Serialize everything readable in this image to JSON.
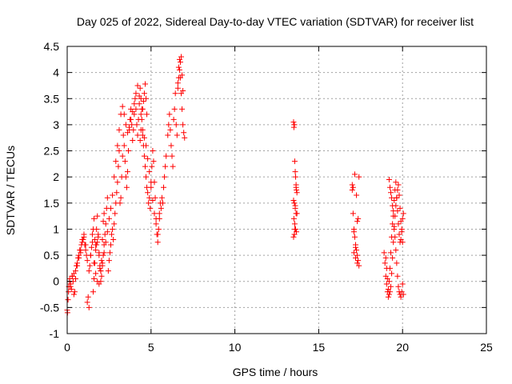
{
  "chart_data": {
    "type": "scatter",
    "title": "Day 025 of 2022, Sidereal Day-to-day VTEC variation (SDTVAR) for receiver list",
    "xlabel": "GPS time / hours",
    "ylabel": "SDTVAR / TECUs",
    "xlim": [
      0,
      25
    ],
    "ylim": [
      -1,
      4.5
    ],
    "xticks": [
      0,
      5,
      10,
      15,
      20,
      25
    ],
    "xtick_labels": [
      "0",
      "5",
      "10",
      "15",
      "20",
      "25"
    ],
    "yticks": [
      -1,
      -0.5,
      0,
      0.5,
      1,
      1.5,
      2,
      2.5,
      3,
      3.5,
      4,
      4.5
    ],
    "ytick_labels": [
      "-1",
      "-0.5",
      "0",
      "0.5",
      "1",
      "1.5",
      "2",
      "2.5",
      "3",
      "3.5",
      "4",
      "4.5"
    ],
    "grid": true,
    "legend": "none",
    "marker": "+",
    "color": "#ff0000",
    "series": [
      {
        "name": "SDTVAR",
        "x": [
          0.0,
          0.05,
          0.1,
          0.15,
          0.2,
          0.25,
          0.3,
          0.35,
          0.4,
          0.45,
          0.5,
          0.55,
          0.6,
          0.65,
          0.7,
          0.75,
          0.8,
          0.85,
          0.9,
          0.95,
          1.0,
          1.05,
          1.1,
          1.15,
          1.2,
          1.25,
          1.3,
          1.35,
          1.4,
          1.45,
          1.5,
          1.55,
          1.6,
          1.65,
          1.7,
          1.75,
          1.8,
          1.85,
          1.9,
          1.95,
          2.0,
          2.05,
          2.1,
          2.15,
          2.2,
          2.25,
          2.3,
          2.35,
          2.4,
          2.45,
          2.5,
          2.55,
          2.6,
          2.65,
          2.7,
          2.75,
          2.8,
          2.85,
          2.9,
          2.95,
          3.0,
          3.05,
          3.1,
          3.15,
          3.2,
          3.25,
          3.3,
          3.35,
          3.4,
          3.45,
          3.5,
          3.55,
          3.6,
          3.65,
          3.7,
          3.75,
          3.8,
          3.85,
          3.9,
          3.95,
          4.0,
          4.05,
          4.1,
          4.15,
          4.2,
          4.25,
          4.3,
          4.35,
          4.4,
          4.45,
          4.5,
          4.55,
          4.6,
          4.65,
          4.7,
          4.75,
          4.8,
          4.85,
          4.9,
          4.95,
          5.0,
          5.05,
          5.1,
          5.15,
          5.2,
          5.25,
          5.3,
          5.35,
          5.4,
          5.45,
          5.5,
          5.55,
          5.6,
          5.65,
          5.7,
          5.75,
          5.8,
          5.85,
          5.9,
          6.0,
          6.05,
          6.1,
          6.15,
          6.2,
          6.25,
          6.3,
          6.35,
          6.4,
          6.45,
          6.5,
          6.55,
          6.6,
          6.65,
          6.7,
          6.75,
          6.8,
          6.85,
          6.9,
          6.95,
          7.0,
          0.02,
          0.08,
          0.14,
          0.2,
          0.3,
          0.4,
          0.5,
          0.6,
          0.7,
          0.8,
          0.9,
          1.0,
          1.1,
          1.2,
          1.3,
          1.4,
          1.5,
          1.6,
          1.7,
          1.8,
          1.9,
          2.0,
          2.1,
          2.2,
          2.3,
          2.4,
          2.5,
          2.6,
          2.7,
          2.8,
          2.9,
          3.0,
          3.1,
          3.2,
          3.3,
          3.4,
          3.5,
          3.6,
          3.7,
          3.8,
          3.9,
          4.0,
          4.1,
          4.2,
          4.3,
          4.4,
          4.5,
          4.6,
          4.7,
          4.8,
          4.9,
          5.0,
          5.1,
          5.2,
          5.3,
          5.4,
          5.5,
          1.55,
          1.6,
          1.65,
          1.7,
          1.75,
          1.8,
          1.85,
          1.9,
          1.95,
          2.0,
          2.05,
          2.1,
          2.15,
          2.2,
          4.35,
          4.4,
          4.45,
          4.5,
          4.55,
          4.6,
          4.65,
          4.7,
          4.75,
          6.6,
          6.65,
          6.7,
          6.75,
          6.8,
          6.85,
          6.9,
          13.5,
          13.52,
          13.55,
          13.57,
          13.6,
          13.62,
          13.65,
          13.67,
          13.7,
          13.5,
          13.55,
          13.6,
          13.65,
          13.52,
          13.57,
          13.62,
          13.67,
          13.5,
          13.55,
          13.6,
          13.65,
          13.7,
          13.58,
          17.0,
          17.05,
          17.1,
          17.15,
          17.2,
          17.25,
          17.3,
          17.35,
          17.4,
          17.05,
          17.15,
          17.25,
          17.35,
          17.1,
          17.2,
          17.3,
          17.4,
          17.0,
          17.1,
          17.2,
          17.3,
          18.9,
          18.95,
          19.0,
          19.05,
          19.1,
          19.15,
          19.2,
          19.25,
          19.3,
          19.35,
          19.4,
          19.45,
          19.5,
          19.55,
          19.6,
          19.65,
          19.7,
          19.75,
          19.8,
          19.85,
          19.9,
          19.95,
          20.0,
          20.05,
          19.0,
          19.05,
          19.1,
          19.15,
          19.2,
          19.25,
          19.3,
          19.35,
          19.4,
          19.45,
          19.5,
          19.55,
          19.6,
          19.65,
          19.7,
          19.75,
          19.8,
          19.85,
          19.9,
          19.95,
          20.0,
          19.2,
          19.25,
          19.3,
          19.35,
          19.4,
          19.45,
          19.5,
          19.55,
          19.6,
          19.65,
          19.7,
          19.75,
          19.8,
          19.85,
          19.9,
          19.95,
          20.0,
          20.05
        ],
        "y": [
          -0.55,
          -0.35,
          -0.1,
          0.05,
          -0.05,
          -0.15,
          0.1,
          0.0,
          0.15,
          -0.2,
          0.2,
          0.3,
          0.35,
          0.45,
          0.5,
          0.6,
          0.55,
          0.7,
          0.75,
          0.8,
          0.85,
          0.7,
          0.6,
          0.5,
          0.4,
          -0.3,
          -0.5,
          0.3,
          0.5,
          0.65,
          0.9,
          1.0,
          1.2,
          0.8,
          0.6,
          0.7,
          0.75,
          0.9,
          0.5,
          0.3,
          0.2,
          0.1,
          0.3,
          0.5,
          0.7,
          0.9,
          1.1,
          1.4,
          1.6,
          0.2,
          0.4,
          0.55,
          0.7,
          0.9,
          1.0,
          0.8,
          1.1,
          1.3,
          1.5,
          1.7,
          1.9,
          2.2,
          2.5,
          1.5,
          1.6,
          2.0,
          2.4,
          2.8,
          2.6,
          2.3,
          2.0,
          1.8,
          2.1,
          2.5,
          2.9,
          3.1,
          3.3,
          3.0,
          2.7,
          2.9,
          3.2,
          3.5,
          3.3,
          3.0,
          2.8,
          3.1,
          3.4,
          3.7,
          3.5,
          3.3,
          2.8,
          2.6,
          2.4,
          2.2,
          2.0,
          1.8,
          1.7,
          1.5,
          1.6,
          1.4,
          1.9,
          2.2,
          2.5,
          2.3,
          1.9,
          1.6,
          1.2,
          0.9,
          0.75,
          1.0,
          1.3,
          1.5,
          1.4,
          1.6,
          1.5,
          1.8,
          2.0,
          2.2,
          2.4,
          2.8,
          3.0,
          3.2,
          2.9,
          2.6,
          2.4,
          2.2,
          3.1,
          3.3,
          3.6,
          3.0,
          2.8,
          3.8,
          4.1,
          4.25,
          3.9,
          3.6,
          3.3,
          3.0,
          2.85,
          2.75,
          -0.6,
          -0.2,
          0.0,
          -0.1,
          0.1,
          -0.25,
          0.05,
          0.3,
          0.45,
          0.6,
          0.8,
          0.9,
          0.7,
          -0.4,
          0.2,
          0.5,
          0.75,
          0.35,
          0.15,
          0.0,
          -0.05,
          0.2,
          0.35,
          0.55,
          0.75,
          0.95,
          1.2,
          1.4,
          1.65,
          2.0,
          2.3,
          2.6,
          2.9,
          3.2,
          3.35,
          3.2,
          3.0,
          2.85,
          2.95,
          3.1,
          3.25,
          3.4,
          3.6,
          3.75,
          3.55,
          3.2,
          2.9,
          2.75,
          2.6,
          2.35,
          2.1,
          1.8,
          1.55,
          1.3,
          1.1,
          0.9,
          1.2,
          -0.2,
          0.05,
          0.35,
          0.7,
          1.0,
          1.25,
          0.85,
          0.55,
          0.25,
          0.0,
          0.4,
          0.8,
          1.15,
          1.3,
          2.7,
          2.9,
          3.1,
          3.3,
          3.45,
          3.6,
          3.78,
          3.5,
          3.2,
          3.7,
          3.9,
          4.05,
          4.2,
          4.3,
          3.95,
          3.65,
          3.05,
          2.95,
          3.0,
          2.3,
          2.1,
          2.0,
          1.85,
          1.75,
          1.7,
          1.55,
          1.5,
          1.4,
          1.3,
          1.2,
          1.1,
          1.0,
          0.95,
          0.85,
          0.9,
          1.45,
          1.8,
          1.3,
          1.0,
          1.85,
          1.8,
          1.0,
          0.85,
          0.7,
          0.6,
          0.5,
          0.4,
          0.3,
          1.3,
          2.05,
          1.65,
          1.2,
          0.55,
          0.45,
          1.15,
          2.0,
          1.75,
          0.95,
          0.65,
          0.35,
          0.55,
          0.35,
          0.1,
          -0.05,
          -0.2,
          -0.3,
          0.0,
          0.25,
          0.55,
          0.85,
          1.1,
          1.35,
          1.55,
          1.75,
          1.9,
          1.6,
          1.35,
          1.1,
          0.9,
          0.75,
          0.8,
          1.0,
          1.2,
          1.3,
          0.45,
          0.25,
          0.05,
          -0.15,
          -0.25,
          -0.2,
          -0.1,
          0.15,
          0.45,
          0.75,
          1.0,
          1.25,
          1.45,
          1.6,
          1.75,
          1.85,
          1.65,
          1.4,
          1.15,
          0.95,
          0.75,
          1.95,
          1.8,
          1.7,
          1.6,
          1.45,
          1.25,
          1.05,
          0.85,
          0.6,
          0.35,
          0.1,
          -0.1,
          -0.2,
          -0.25,
          -0.3,
          -0.2,
          -0.05,
          -0.25
        ]
      }
    ]
  }
}
